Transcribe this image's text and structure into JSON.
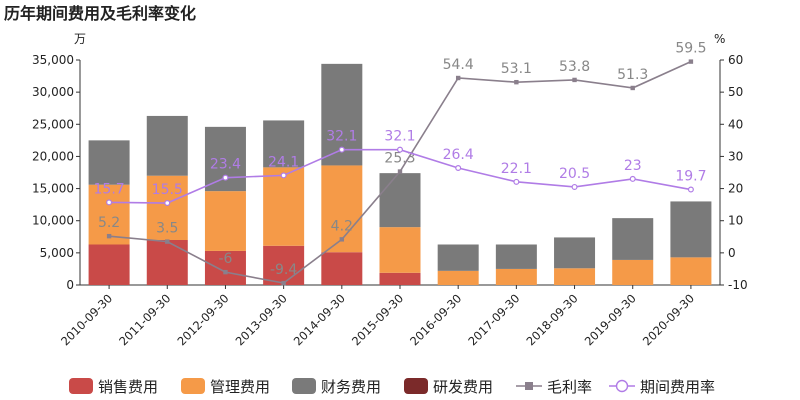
{
  "chart_data": {
    "type": "bar",
    "title": "历年期间费用及毛利率变化",
    "left_unit": "万",
    "right_unit": "%",
    "categories": [
      "2010-09-30",
      "2011-09-30",
      "2012-09-30",
      "2013-09-30",
      "2014-09-30",
      "2015-09-30",
      "2016-09-30",
      "2017-09-30",
      "2018-09-30",
      "2019-09-30",
      "2020-09-30"
    ],
    "ylim_left": [
      0,
      35000
    ],
    "yticks_left": [
      "0",
      "5,000",
      "10,000",
      "15,000",
      "20,000",
      "25,000",
      "30,000",
      "35,000"
    ],
    "ylim_right": [
      -10,
      60
    ],
    "yticks_right": [
      "-10",
      "0",
      "10",
      "20",
      "30",
      "40",
      "50",
      "60"
    ],
    "bar_series": [
      {
        "name": "销售费用",
        "color": "#c94a48",
        "values": [
          6300,
          7000,
          5300,
          6100,
          5100,
          1900,
          0,
          0,
          0,
          0,
          0
        ]
      },
      {
        "name": "管理费用",
        "color": "#f59a48",
        "values": [
          9300,
          10000,
          9300,
          12200,
          13500,
          7100,
          2200,
          2500,
          2600,
          3900,
          4300
        ]
      },
      {
        "name": "财务费用",
        "color": "#7a7a7a",
        "values": [
          6900,
          9300,
          10000,
          7300,
          15800,
          8400,
          4100,
          3800,
          4800,
          6500,
          8700
        ]
      },
      {
        "name": "研发费用",
        "color": "#7b2a2a",
        "values": [
          0,
          0,
          0,
          0,
          0,
          0,
          0,
          0,
          0,
          0,
          0
        ]
      }
    ],
    "line_series": [
      {
        "name": "毛利率",
        "color": "#8a7f8c",
        "label_color": "#888888",
        "marker": "square",
        "values": [
          5.2,
          3.5,
          -6,
          -9.4,
          4.2,
          25.3,
          54.4,
          53.1,
          53.8,
          51.3,
          59.5
        ],
        "labels": [
          "5.2",
          "3.5",
          "-6",
          "-9.4",
          "4.2",
          "25.3",
          "54.4",
          "53.1",
          "53.8",
          "51.3",
          "59.5"
        ]
      },
      {
        "name": "期间费用率",
        "color": "#b07ce6",
        "label_color": "#b07ce6",
        "marker": "circle",
        "values": [
          15.7,
          15.5,
          23.4,
          24.1,
          32.1,
          32.1,
          26.4,
          22.1,
          20.5,
          23,
          19.7
        ],
        "labels": [
          "15.7",
          "15.5",
          "23.4",
          "24.1",
          "32.1",
          "32.1",
          "26.4",
          "22.1",
          "20.5",
          "23",
          "19.7"
        ]
      }
    ],
    "legend_position": "bottom"
  }
}
